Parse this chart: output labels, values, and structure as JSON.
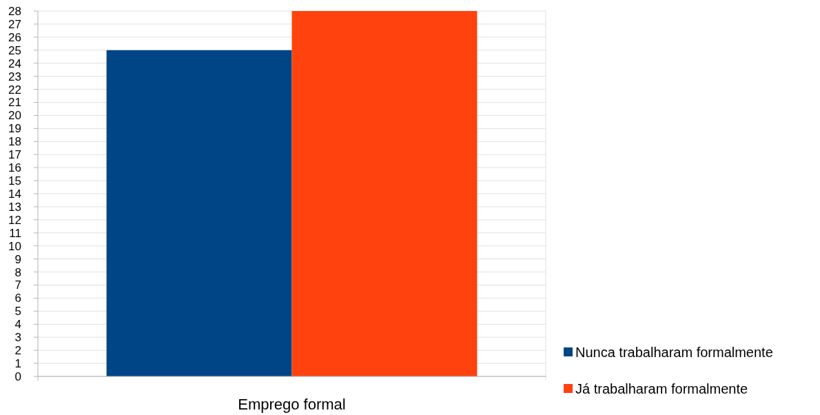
{
  "chart_data": {
    "type": "bar",
    "categories": [
      "Emprego formal"
    ],
    "series": [
      {
        "name": "Nunca trabalharam formalmente",
        "color": "#004586",
        "values": [
          25
        ]
      },
      {
        "name": "Já trabalharam formalmente",
        "color": "#ff420e",
        "values": [
          28
        ]
      }
    ],
    "ylim": [
      0,
      28
    ],
    "yticks": [
      0,
      1,
      2,
      3,
      4,
      5,
      6,
      7,
      8,
      9,
      10,
      11,
      12,
      13,
      14,
      15,
      16,
      17,
      18,
      19,
      20,
      21,
      22,
      23,
      24,
      25,
      26,
      27,
      28
    ],
    "grid": "y",
    "legend": "right"
  }
}
